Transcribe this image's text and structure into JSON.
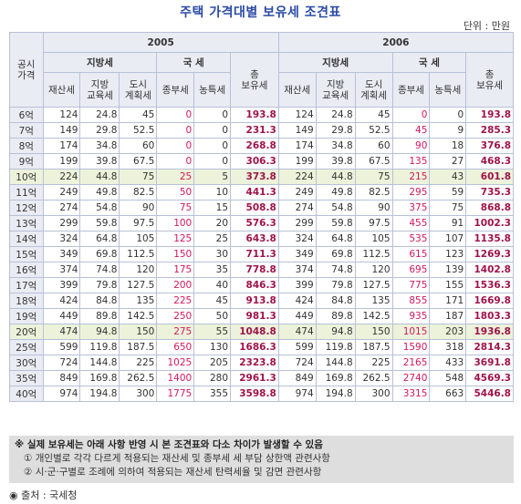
{
  "title": "주택 가격대별 보유세 조견표",
  "unit": "단위 : 만원",
  "header": {
    "row_label": "공시\n가격",
    "years": [
      "2005",
      "2006"
    ],
    "local_tax": "지방세",
    "national_tax": "국  세",
    "total": "총\n보유세",
    "property_tax": "재산세",
    "local_edu": "지방\n교육세",
    "urban_plan": "도시\n계획세",
    "comp_tax": "종부세",
    "farm_tax": "농특세"
  },
  "rows": [
    {
      "price": "6억",
      "a": [
        "124",
        "24.8",
        "45",
        "0",
        "0",
        "193.8"
      ],
      "b": [
        "124",
        "24.8",
        "45",
        "0",
        "0",
        "193.8"
      ]
    },
    {
      "price": "7억",
      "a": [
        "149",
        "29.8",
        "52.5",
        "0",
        "0",
        "231.3"
      ],
      "b": [
        "149",
        "29.8",
        "52.5",
        "45",
        "9",
        "285.3"
      ]
    },
    {
      "price": "8억",
      "a": [
        "174",
        "34.8",
        "60",
        "0",
        "0",
        "268.8"
      ],
      "b": [
        "174",
        "34.8",
        "60",
        "90",
        "18",
        "376.8"
      ]
    },
    {
      "price": "9억",
      "a": [
        "199",
        "39.8",
        "67.5",
        "0",
        "0",
        "306.3"
      ],
      "b": [
        "199",
        "39.8",
        "67.5",
        "135",
        "27",
        "468.3"
      ]
    },
    {
      "price": "10억",
      "a": [
        "224",
        "44.8",
        "75",
        "25",
        "5",
        "373.8"
      ],
      "b": [
        "224",
        "44.8",
        "75",
        "215",
        "43",
        "601.8"
      ]
    },
    {
      "price": "11억",
      "a": [
        "249",
        "49.8",
        "82.5",
        "50",
        "10",
        "441.3"
      ],
      "b": [
        "249",
        "49.8",
        "82.5",
        "295",
        "59",
        "735.3"
      ]
    },
    {
      "price": "12억",
      "a": [
        "274",
        "54.8",
        "90",
        "75",
        "15",
        "508.8"
      ],
      "b": [
        "274",
        "54.8",
        "90",
        "375",
        "75",
        "868.8"
      ]
    },
    {
      "price": "13억",
      "a": [
        "299",
        "59.8",
        "97.5",
        "100",
        "20",
        "576.3"
      ],
      "b": [
        "299",
        "59.8",
        "97.5",
        "455",
        "91",
        "1002.3"
      ]
    },
    {
      "price": "14억",
      "a": [
        "324",
        "64.8",
        "105",
        "125",
        "25",
        "643.8"
      ],
      "b": [
        "324",
        "64.8",
        "105",
        "535",
        "107",
        "1135.8"
      ]
    },
    {
      "price": "15억",
      "a": [
        "349",
        "69.8",
        "112.5",
        "150",
        "30",
        "711.3"
      ],
      "b": [
        "349",
        "69.8",
        "112.5",
        "615",
        "123",
        "1269.3"
      ]
    },
    {
      "price": "16억",
      "a": [
        "374",
        "74.8",
        "120",
        "175",
        "35",
        "778.8"
      ],
      "b": [
        "374",
        "74.8",
        "120",
        "695",
        "139",
        "1402.8"
      ]
    },
    {
      "price": "17억",
      "a": [
        "399",
        "79.8",
        "127.5",
        "200",
        "40",
        "846.3"
      ],
      "b": [
        "399",
        "79.8",
        "127.5",
        "775",
        "155",
        "1536.3"
      ]
    },
    {
      "price": "18억",
      "a": [
        "424",
        "84.8",
        "135",
        "225",
        "45",
        "913.8"
      ],
      "b": [
        "424",
        "84.8",
        "135",
        "855",
        "171",
        "1669.8"
      ]
    },
    {
      "price": "19억",
      "a": [
        "449",
        "89.8",
        "142.5",
        "250",
        "50",
        "981.3"
      ],
      "b": [
        "449",
        "89.8",
        "142.5",
        "935",
        "187",
        "1803.3"
      ]
    },
    {
      "price": "20억",
      "a": [
        "474",
        "94.8",
        "150",
        "275",
        "55",
        "1048.8"
      ],
      "b": [
        "474",
        "94.8",
        "150",
        "1015",
        "203",
        "1936.8"
      ]
    },
    {
      "price": "25억",
      "a": [
        "599",
        "119.8",
        "187.5",
        "650",
        "130",
        "1686.3"
      ],
      "b": [
        "599",
        "119.8",
        "187.5",
        "1590",
        "318",
        "2814.3"
      ]
    },
    {
      "price": "30억",
      "a": [
        "724",
        "144.8",
        "225",
        "1025",
        "205",
        "2323.8"
      ],
      "b": [
        "724",
        "144.8",
        "225",
        "2165",
        "433",
        "3691.8"
      ]
    },
    {
      "price": "35억",
      "a": [
        "849",
        "169.8",
        "262.5",
        "1400",
        "280",
        "2961.3"
      ],
      "b": [
        "849",
        "169.8",
        "262.5",
        "2740",
        "548",
        "4569.3"
      ]
    },
    {
      "price": "40억",
      "a": [
        "974",
        "194.8",
        "300",
        "1775",
        "355",
        "3598.8"
      ],
      "b": [
        "974",
        "194.8",
        "300",
        "3315",
        "663",
        "5446.8"
      ]
    }
  ],
  "highlight_rows": [
    "10억",
    "20억"
  ],
  "notes": {
    "line1": "※ 실제 보유세는 아래 사항 반영 시 본 조견표와 다소 차이가 발생할 수 있음",
    "line2": "① 개인별로 각각 다르게 적용되는 재산세 및 종부세 세 부담 상한액 관련사항",
    "line3": "② 시·군·구별로 조례에 의하여 적용되는 재산세 탄력세율 및 감면 관련사항"
  },
  "source": "◉ 출처 : 국세청",
  "colors": {
    "title": "#2a4aa8",
    "pink": "#d4185e",
    "total": "#a0134a",
    "highlight": "#ecf3da",
    "header_bg": "#eaecf4"
  }
}
